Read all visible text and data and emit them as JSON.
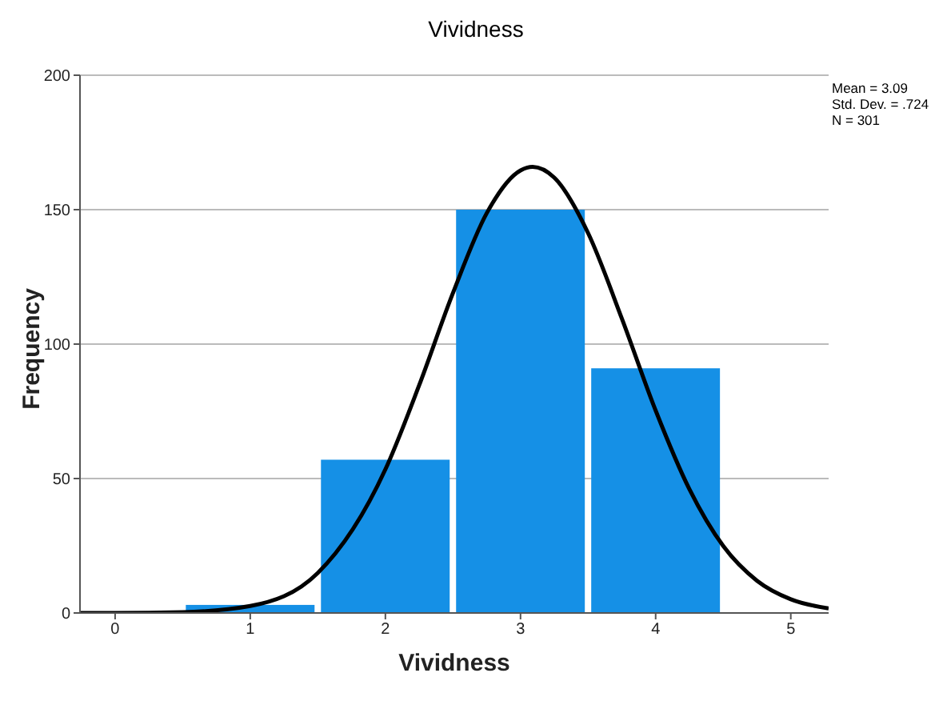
{
  "chart_data": {
    "type": "histogram",
    "title": "Vividness",
    "xlabel": "Vividness",
    "ylabel": "Frequency",
    "bins": [
      0.5,
      1.5,
      2.5,
      3.5,
      4.5
    ],
    "values": [
      3,
      57,
      150,
      91
    ],
    "color": "#1590e6",
    "series": [
      {
        "type": "line",
        "color": "#000000",
        "marker": "none",
        "line_style": "solid",
        "x": [
          -0.26,
          0,
          0.5,
          1,
          1.5,
          2,
          2.25,
          2.5,
          2.75,
          3,
          3.09,
          3.25,
          3.5,
          3.75,
          4,
          4.25,
          4.5,
          4.75,
          5,
          5.28
        ],
        "values": [
          0,
          0,
          0.3,
          2.6,
          14.9,
          53.4,
          84.7,
          119,
          148.7,
          164.6,
          165.9,
          161.9,
          141.3,
          109.5,
          75.3,
          46,
          24.9,
          12,
          5.1,
          1.7
        ]
      }
    ],
    "xlim": [
      -0.26,
      5.28
    ],
    "xticks": [
      0,
      1,
      2,
      3,
      4,
      5
    ],
    "ylim": [
      0,
      200
    ],
    "yticks": [
      0,
      50,
      100,
      150,
      200
    ],
    "grid": "y",
    "legend": false,
    "annotations": [
      "Mean = 3.09",
      "Std. Dev. = .724",
      "N = 301"
    ]
  }
}
